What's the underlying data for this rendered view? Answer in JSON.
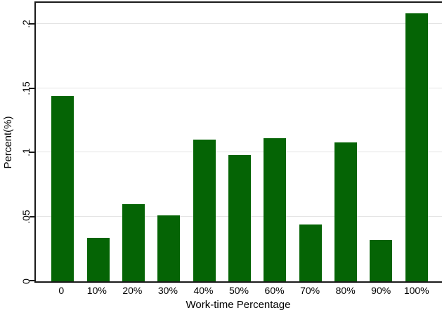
{
  "chart_data": {
    "type": "bar",
    "title": "",
    "xlabel": "Work-time Percentage",
    "ylabel": "Percent(%)",
    "categories": [
      "0",
      "10%",
      "20%",
      "30%",
      "40%",
      "50%",
      "60%",
      "70%",
      "80%",
      "90%",
      "100%"
    ],
    "values": [
      0.144,
      0.034,
      0.06,
      0.051,
      0.11,
      0.098,
      0.111,
      0.044,
      0.108,
      0.032,
      0.208
    ],
    "yticks": [
      {
        "value": 0,
        "label": "0"
      },
      {
        "value": 0.05,
        "label": ".05"
      },
      {
        "value": 0.1,
        "label": ".1"
      },
      {
        "value": 0.15,
        "label": ".15"
      },
      {
        "value": 0.2,
        "label": ".2"
      }
    ],
    "ylim": [
      0,
      0.2163
    ],
    "grid": true,
    "legend": "none",
    "colors": {
      "bar": "#056405",
      "grid": "#e4e4e4",
      "axis": "#1a1a1a",
      "background": "#ffffff",
      "text": "#000000"
    }
  }
}
